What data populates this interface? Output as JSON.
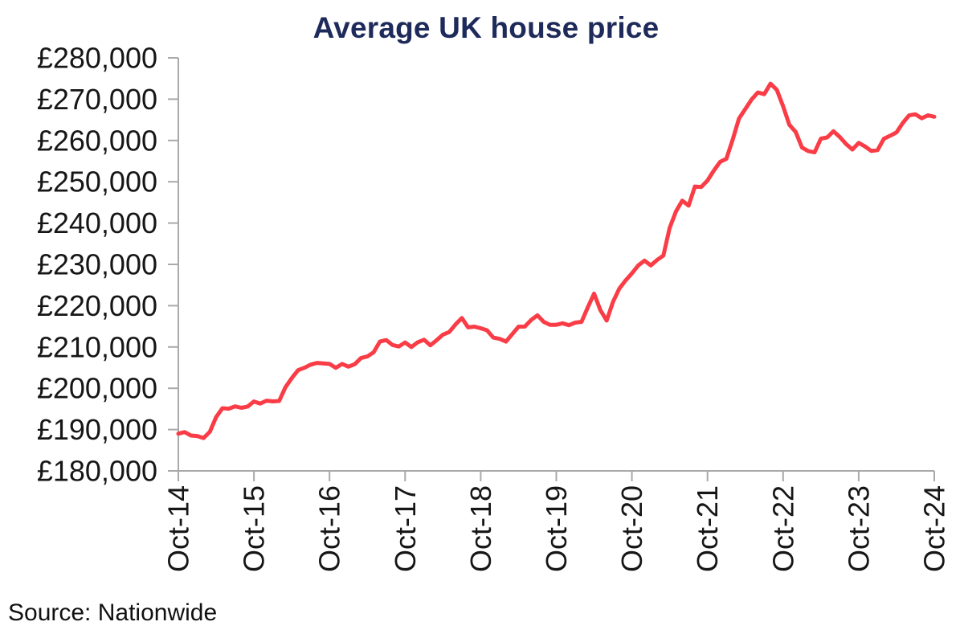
{
  "chart_data": {
    "type": "line",
    "title": "Average UK house price",
    "source": "Source: Nationwide",
    "x_tick_labels": [
      "Oct-14",
      "Oct-15",
      "Oct-16",
      "Oct-17",
      "Oct-18",
      "Oct-19",
      "Oct-20",
      "Oct-21",
      "Oct-22",
      "Oct-23",
      "Oct-24"
    ],
    "x_tick_month_indices": [
      0,
      12,
      24,
      36,
      48,
      60,
      72,
      84,
      96,
      108,
      120
    ],
    "y_ticks": [
      180000,
      190000,
      200000,
      210000,
      220000,
      230000,
      240000,
      250000,
      260000,
      270000,
      280000
    ],
    "y_tick_labels": [
      "£180,000",
      "£190,000",
      "£200,000",
      "£210,000",
      "£220,000",
      "£230,000",
      "£240,000",
      "£250,000",
      "£260,000",
      "£270,000",
      "£280,000"
    ],
    "ylim": [
      180000,
      280000
    ],
    "x_start_label": "Oct-14",
    "x_end_label": "Oct-24",
    "x_unit": "month",
    "grid": false,
    "legend": "none",
    "series": [
      {
        "name": "Average UK house price (GBP)",
        "values": [
          189002,
          189388,
          188559,
          188446,
          187964,
          189454,
          193048,
          195166,
          195055,
          195621,
          195279,
          195585,
          196807,
          196305,
          196999,
          196829,
          196930,
          200251,
          202436,
          204368,
          204968,
          205715,
          206145,
          206015,
          205904,
          204947,
          205898,
          205240,
          205846,
          207308,
          207699,
          208711,
          211301,
          211671,
          210495,
          210116,
          211085,
          209988,
          211156,
          211756,
          210402,
          211625,
          213000,
          213618,
          215444,
          217010,
          214745,
          214922,
          214534,
          214044,
          212281,
          211966,
          211304,
          213102,
          214920,
          214946,
          216515,
          217663,
          216096,
          215352,
          215368,
          215734,
          215282,
          215897,
          216092,
          219583,
          222915,
          218902,
          216403,
          220936,
          224123,
          226129,
          227826,
          229721,
          230920,
          229748,
          231061,
          232134,
          238831,
          242832,
          245432,
          244229,
          248857,
          248742,
          250311,
          252687,
          254822,
          255556,
          260230,
          265312,
          267620,
          269914,
          271613,
          271209,
          273751,
          272259,
          268282,
          263788,
          262068,
          258297,
          257406,
          257122,
          260441,
          260736,
          262239,
          260828,
          259153,
          257808,
          259423,
          258557,
          257443,
          257656,
          260420,
          261142,
          261962,
          264249,
          266064,
          266334,
          265375,
          266094,
          265738
        ]
      }
    ],
    "colors": {
      "line": "#f93c46",
      "title": "#1e2a5a",
      "axis": "#a9a9a9",
      "tick_text": "#161616",
      "source_text": "#111111",
      "background": "#ffffff"
    }
  }
}
